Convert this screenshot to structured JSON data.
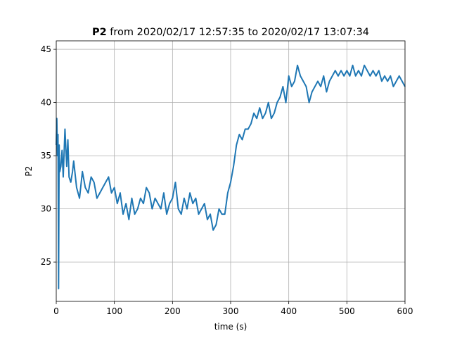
{
  "chart_data": {
    "type": "line",
    "title": {
      "bold": "P2",
      "rest": " from 2020/02/17 12:57:35 to 2020/02/17 13:07:34"
    },
    "xlabel": "time (s)",
    "ylabel": "P2",
    "xlim": [
      0,
      600
    ],
    "ylim": [
      21.3,
      45.8
    ],
    "xticks": [
      0,
      100,
      200,
      300,
      400,
      500,
      600
    ],
    "yticks": [
      25,
      30,
      35,
      40,
      45
    ],
    "grid": true,
    "series": [
      {
        "color": "#1f77b4",
        "x": [
          0,
          1,
          2,
          3,
          4,
          5,
          6,
          8,
          10,
          12,
          15,
          18,
          20,
          22,
          25,
          28,
          30,
          35,
          40,
          45,
          50,
          55,
          60,
          65,
          70,
          75,
          80,
          85,
          90,
          95,
          100,
          105,
          110,
          115,
          120,
          125,
          130,
          135,
          140,
          145,
          150,
          155,
          160,
          165,
          170,
          175,
          180,
          185,
          190,
          195,
          200,
          205,
          210,
          215,
          220,
          225,
          230,
          235,
          240,
          245,
          250,
          255,
          260,
          265,
          270,
          275,
          280,
          285,
          290,
          295,
          300,
          305,
          310,
          315,
          320,
          325,
          330,
          335,
          340,
          345,
          350,
          355,
          360,
          365,
          370,
          375,
          380,
          385,
          390,
          395,
          400,
          405,
          410,
          415,
          420,
          425,
          430,
          435,
          440,
          445,
          450,
          455,
          460,
          465,
          470,
          475,
          480,
          485,
          490,
          495,
          500,
          505,
          510,
          515,
          520,
          525,
          530,
          535,
          540,
          545,
          550,
          555,
          560,
          565,
          570,
          575,
          580,
          585,
          590,
          595,
          600
        ],
        "y": [
          36.0,
          38.5,
          35.0,
          37.0,
          22.5,
          36.0,
          33.5,
          34.0,
          35.5,
          33.0,
          37.5,
          34.0,
          36.5,
          33.0,
          32.5,
          33.5,
          34.5,
          32.0,
          31.0,
          33.5,
          32.0,
          31.5,
          33.0,
          32.5,
          31.0,
          31.5,
          32.0,
          32.5,
          33.0,
          31.5,
          32.0,
          30.5,
          31.5,
          29.5,
          30.5,
          29.0,
          31.0,
          29.5,
          30.0,
          31.0,
          30.5,
          32.0,
          31.5,
          30.0,
          31.0,
          30.5,
          30.0,
          31.5,
          29.5,
          30.5,
          31.0,
          32.5,
          30.0,
          29.5,
          31.0,
          30.0,
          31.5,
          30.5,
          31.0,
          29.5,
          30.0,
          30.5,
          29.0,
          29.5,
          28.0,
          28.5,
          30.0,
          29.5,
          29.5,
          31.5,
          32.5,
          34.0,
          36.0,
          37.0,
          36.5,
          37.5,
          37.5,
          38.0,
          39.0,
          38.5,
          39.5,
          38.5,
          39.0,
          40.0,
          38.5,
          39.0,
          40.0,
          40.5,
          41.5,
          40.0,
          42.5,
          41.5,
          42.0,
          43.5,
          42.5,
          42.0,
          41.5,
          40.0,
          41.0,
          41.5,
          42.0,
          41.5,
          42.5,
          41.0,
          42.0,
          42.5,
          43.0,
          42.5,
          43.0,
          42.5,
          43.0,
          42.5,
          43.5,
          42.5,
          43.0,
          42.5,
          43.5,
          43.0,
          42.5,
          43.0,
          42.5,
          43.0,
          42.0,
          42.5,
          42.0,
          42.5,
          41.5,
          42.0,
          42.5,
          42.0,
          41.5
        ]
      }
    ]
  }
}
